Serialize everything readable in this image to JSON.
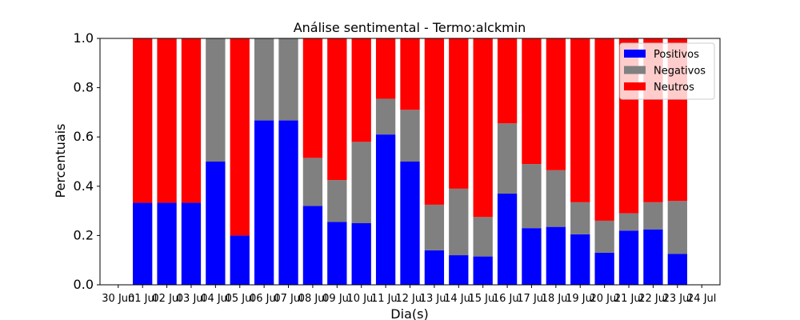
{
  "chart_data": {
    "type": "bar",
    "stacked": true,
    "title": "Análise sentimental - Termo:alckmin",
    "xlabel": "Dia(s)",
    "ylabel": "Percentuais",
    "ylim": [
      0,
      1.0
    ],
    "yticks": [
      "0.0",
      "0.2",
      "0.4",
      "0.6",
      "0.8",
      "1.0"
    ],
    "xtick_labels": [
      "30 Jun",
      "01 Jul",
      "02 Jul",
      "03 Jul",
      "04 Jul",
      "05 Jul",
      "06 Jul",
      "07 Jul",
      "08 Jul",
      "09 Jul",
      "10 Jul",
      "11 Jul",
      "12 Jul",
      "13 Jul",
      "14 Jul",
      "15 Jul",
      "16 Jul",
      "17 Jul",
      "18 Jul",
      "19 Jul",
      "20 Jul",
      "21 Jul",
      "22 Jul",
      "23 Jul",
      "24 Jul"
    ],
    "categories": [
      "01 Jul",
      "02 Jul",
      "03 Jul",
      "04 Jul",
      "05 Jul",
      "06 Jul",
      "07 Jul",
      "08 Jul",
      "09 Jul",
      "10 Jul",
      "11 Jul",
      "12 Jul",
      "13 Jul",
      "14 Jul",
      "15 Jul",
      "16 Jul",
      "17 Jul",
      "18 Jul",
      "19 Jul",
      "20 Jul",
      "21 Jul",
      "22 Jul",
      "23 Jul"
    ],
    "legend_position": "top-right",
    "grid": false,
    "series": [
      {
        "name": "Positivos",
        "color": "#0000ff",
        "values": [
          0.333,
          0.333,
          0.333,
          0.5,
          0.2,
          0.667,
          0.667,
          0.32,
          0.255,
          0.25,
          0.61,
          0.5,
          0.14,
          0.12,
          0.115,
          0.37,
          0.23,
          0.235,
          0.205,
          0.13,
          0.22,
          0.225,
          0.125
        ]
      },
      {
        "name": "Negativos",
        "color": "#808080",
        "values": [
          0.0,
          0.0,
          0.0,
          0.5,
          0.0,
          0.333,
          0.333,
          0.195,
          0.17,
          0.33,
          0.145,
          0.21,
          0.185,
          0.27,
          0.16,
          0.285,
          0.26,
          0.23,
          0.13,
          0.13,
          0.07,
          0.11,
          0.215
        ]
      },
      {
        "name": "Neutros",
        "color": "#ff0000",
        "values": [
          0.667,
          0.667,
          0.667,
          0.0,
          0.8,
          0.0,
          0.0,
          0.485,
          0.575,
          0.42,
          0.245,
          0.29,
          0.675,
          0.61,
          0.725,
          0.345,
          0.51,
          0.535,
          0.665,
          0.74,
          0.71,
          0.665,
          0.66
        ]
      }
    ]
  }
}
